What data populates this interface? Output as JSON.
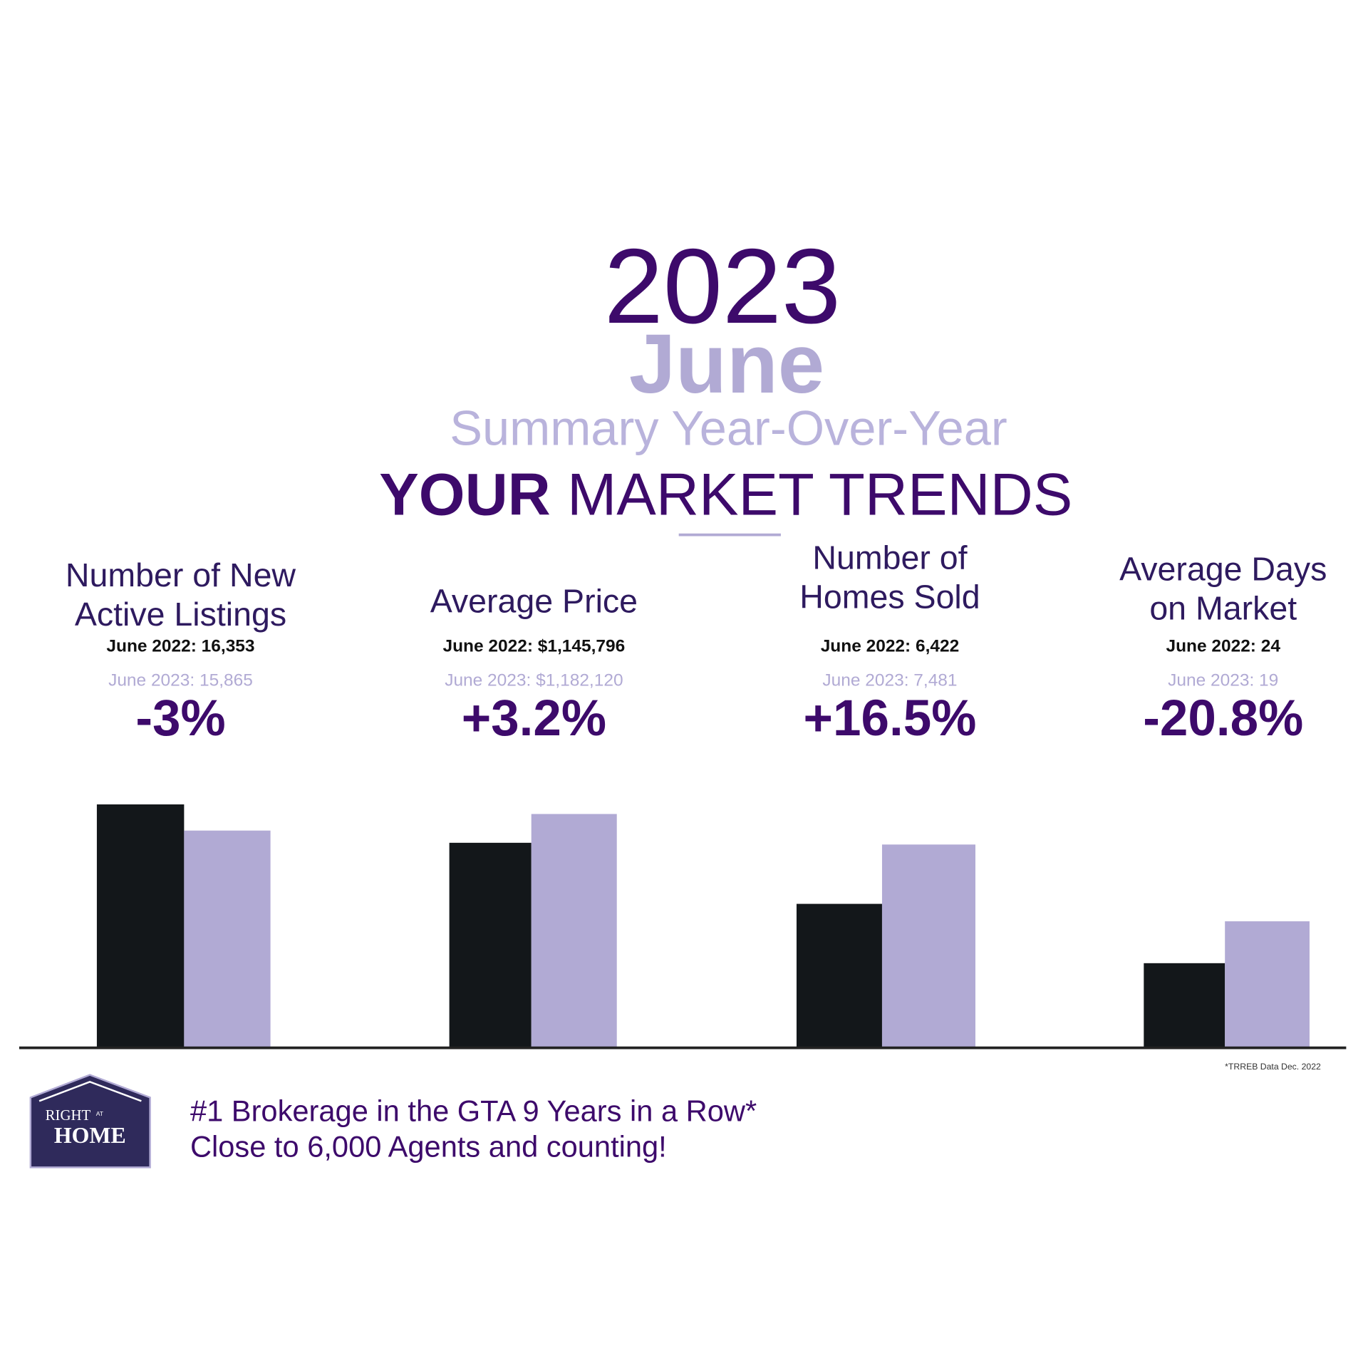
{
  "header": {
    "year": "2023",
    "month": "June",
    "subtitle": "Summary Year-Over-Year",
    "title_bold": "YOUR",
    "title_rest": "MARKET TRENDS"
  },
  "metrics": [
    {
      "label_lines": [
        "Number of New",
        "Active Listings"
      ],
      "prior": "June 2022: 16,353",
      "current": "June 2023: 15,865",
      "change": "-3%"
    },
    {
      "label_lines": [
        "Average Price"
      ],
      "prior": "June 2022: $1,145,796",
      "current": "June 2023: $1,182,120",
      "change": "+3.2%"
    },
    {
      "label_lines": [
        "Number of",
        "Homes Sold"
      ],
      "prior": "June 2022: 6,422",
      "current": "June 2023: 7,481",
      "change": "+16.5%"
    },
    {
      "label_lines": [
        "Average Days",
        "on Market"
      ],
      "prior": "June 2022: 24",
      "current": "June 2023: 19",
      "change": "-20.8%"
    }
  ],
  "footnote": "*TRREB Data Dec. 2022",
  "logo": {
    "line1": "RIGHT",
    "small": "AT",
    "line2": "HOME"
  },
  "footer": {
    "lines": [
      "#1 Brokerage in the GTA 9 Years in a Row*",
      "Close to 6,000 Agents and counting!"
    ]
  }
}
